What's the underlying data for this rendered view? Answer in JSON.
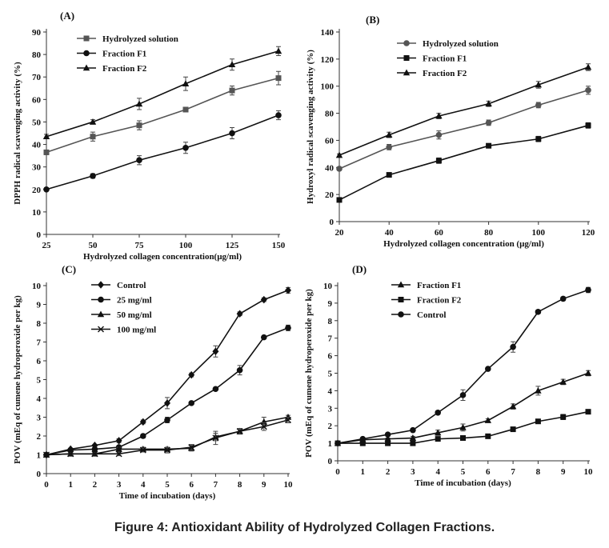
{
  "caption": "Figure 4: Antioxidant Ability of Hydrolyzed Collagen Fractions.",
  "chart_data": [
    {
      "panel": "(A)",
      "type": "line",
      "xlabel": "Hydrolyzed  collagen concentration(µg/ml)",
      "ylabel": "DPPH radical scavenging activity (%)",
      "xlim": [
        25,
        150
      ],
      "ylim": [
        0,
        90
      ],
      "xticks": [
        25,
        50,
        75,
        100,
        125,
        150
      ],
      "yticks": [
        0,
        10,
        20,
        30,
        40,
        50,
        60,
        70,
        80,
        90
      ],
      "legend_position": "top-left",
      "series": [
        {
          "name": "Hydrolyzed solution",
          "marker": "square",
          "color": "#555555",
          "x": [
            25,
            50,
            75,
            100,
            125,
            150
          ],
          "y": [
            36.5,
            43.5,
            48.5,
            55.5,
            64,
            69.5
          ],
          "err": [
            1,
            2,
            2,
            1,
            2,
            3
          ]
        },
        {
          "name": "Fraction F1",
          "marker": "circle",
          "color": "#111111",
          "x": [
            25,
            50,
            75,
            100,
            125,
            150
          ],
          "y": [
            20,
            26,
            33,
            38.5,
            45,
            53
          ],
          "err": [
            0.5,
            1,
            2,
            2.5,
            2.5,
            2
          ]
        },
        {
          "name": "Fraction F2",
          "marker": "triangle",
          "color": "#111111",
          "x": [
            25,
            50,
            75,
            100,
            125,
            150
          ],
          "y": [
            43.5,
            50,
            58,
            67,
            75.5,
            81.5
          ],
          "err": [
            1,
            1,
            2.5,
            3,
            2.5,
            2
          ]
        }
      ]
    },
    {
      "panel": "(B)",
      "type": "line",
      "xlabel": "Hydrolyzed  collagen concentration  (µg/ml)",
      "ylabel": "Hydroxyl radical scavenging activity (%)",
      "xlim": [
        20,
        120
      ],
      "ylim": [
        0,
        140
      ],
      "xticks": [
        20,
        40,
        60,
        80,
        100,
        120
      ],
      "yticks": [
        0,
        20,
        40,
        60,
        80,
        100,
        120,
        140
      ],
      "legend_position": "top-left",
      "series": [
        {
          "name": "Hydrolyzed solution",
          "marker": "circle",
          "color": "#555555",
          "x": [
            20,
            40,
            60,
            80,
            100,
            120
          ],
          "y": [
            39,
            55,
            64,
            73,
            86,
            97
          ],
          "err": [
            1,
            2,
            3,
            2,
            2,
            3
          ]
        },
        {
          "name": "Fraction F1",
          "marker": "square",
          "color": "#111111",
          "x": [
            20,
            40,
            60,
            80,
            100,
            120
          ],
          "y": [
            16,
            34.5,
            45,
            56,
            61,
            71
          ],
          "err": [
            1,
            1.5,
            2,
            1,
            2,
            2
          ]
        },
        {
          "name": "Fraction F2",
          "marker": "triangle",
          "color": "#111111",
          "x": [
            20,
            40,
            60,
            80,
            100,
            120
          ],
          "y": [
            49,
            64,
            78,
            87,
            101,
            114
          ],
          "err": [
            1,
            2,
            2,
            2,
            2.5,
            2.5
          ]
        }
      ]
    },
    {
      "panel": "(C)",
      "type": "line",
      "xlabel": "Time of incubation  (days)",
      "ylabel": "POV (mEq of cumene hydroperoxide per kg)",
      "xlim": [
        0,
        10
      ],
      "ylim": [
        0,
        10
      ],
      "xticks": [
        0,
        1,
        2,
        3,
        4,
        5,
        6,
        7,
        8,
        9,
        10
      ],
      "yticks": [
        0,
        1,
        2,
        3,
        4,
        5,
        6,
        7,
        8,
        9,
        10
      ],
      "legend_position": "top-left",
      "series": [
        {
          "name": "Control",
          "marker": "diamond",
          "color": "#111111",
          "x": [
            0,
            1,
            2,
            3,
            4,
            5,
            6,
            7,
            8,
            9,
            10
          ],
          "y": [
            1,
            1.3,
            1.5,
            1.75,
            2.75,
            3.75,
            5.25,
            6.5,
            8.5,
            9.25,
            9.75
          ],
          "err": [
            0,
            0.05,
            0.05,
            0.1,
            0.1,
            0.3,
            0.1,
            0.3,
            0.1,
            0.1,
            0.15
          ]
        },
        {
          "name": "25 mg/ml",
          "marker": "circle",
          "color": "#111111",
          "x": [
            0,
            1,
            2,
            3,
            4,
            5,
            6,
            7,
            8,
            9,
            10
          ],
          "y": [
            1,
            1.25,
            1.3,
            1.4,
            2,
            2.85,
            3.75,
            4.5,
            5.5,
            7.25,
            7.75
          ],
          "err": [
            0,
            0.05,
            0.05,
            0.05,
            0.1,
            0.15,
            0.05,
            0.05,
            0.25,
            0.05,
            0.15
          ]
        },
        {
          "name": "50 mg/ml",
          "marker": "triangle",
          "color": "#111111",
          "x": [
            0,
            1,
            2,
            3,
            4,
            5,
            6,
            7,
            8,
            9,
            10
          ],
          "y": [
            1,
            1.05,
            1.05,
            1.3,
            1.3,
            1.3,
            1.35,
            1.95,
            2.25,
            2.75,
            3
          ],
          "err": [
            0,
            0.05,
            0.05,
            0.1,
            0.1,
            0.1,
            0.15,
            0.2,
            0.15,
            0.25,
            0.1
          ]
        },
        {
          "name": "100 mg/ml",
          "marker": "cross",
          "color": "#111111",
          "x": [
            0,
            1,
            2,
            3,
            4,
            5,
            6,
            7,
            8,
            9,
            10
          ],
          "y": [
            1,
            1.05,
            1.05,
            1.05,
            1.25,
            1.25,
            1.4,
            1.9,
            2.25,
            2.5,
            2.85
          ],
          "err": [
            0,
            0.05,
            0.05,
            0.1,
            0.1,
            0.15,
            0.15,
            0.35,
            0.15,
            0.2,
            0.15
          ]
        }
      ]
    },
    {
      "panel": "(D)",
      "type": "line",
      "xlabel": "Time of incubation  (days)",
      "ylabel": "POV (mEq of cumene hydroperoxide per kg)",
      "xlim": [
        0,
        10
      ],
      "ylim": [
        0,
        10
      ],
      "xticks": [
        0,
        1,
        2,
        3,
        4,
        5,
        6,
        7,
        8,
        9,
        10
      ],
      "yticks": [
        0,
        1,
        2,
        3,
        4,
        5,
        6,
        7,
        8,
        9,
        10
      ],
      "legend_position": "top-left",
      "series": [
        {
          "name": "Fraction F1",
          "marker": "triangle",
          "color": "#111111",
          "x": [
            0,
            1,
            2,
            3,
            4,
            5,
            6,
            7,
            8,
            9,
            10
          ],
          "y": [
            1,
            1.2,
            1.25,
            1.3,
            1.6,
            1.9,
            2.3,
            3.1,
            4,
            4.5,
            5
          ],
          "err": [
            0,
            0.05,
            0.05,
            0.1,
            0.15,
            0.2,
            0.1,
            0.15,
            0.25,
            0.15,
            0.15
          ]
        },
        {
          "name": "Fraction F2",
          "marker": "square",
          "color": "#111111",
          "x": [
            0,
            1,
            2,
            3,
            4,
            5,
            6,
            7,
            8,
            9,
            10
          ],
          "y": [
            1,
            1,
            1,
            1,
            1.25,
            1.3,
            1.4,
            1.8,
            2.25,
            2.5,
            2.8
          ],
          "err": [
            0,
            0.05,
            0.05,
            0.05,
            0.05,
            0.05,
            0.05,
            0.05,
            0.1,
            0.15,
            0.05
          ]
        },
        {
          "name": "Control",
          "marker": "circle",
          "color": "#111111",
          "x": [
            0,
            1,
            2,
            3,
            4,
            5,
            6,
            7,
            8,
            9,
            10
          ],
          "y": [
            1,
            1.25,
            1.5,
            1.75,
            2.75,
            3.75,
            5.25,
            6.5,
            8.5,
            9.25,
            9.75
          ],
          "err": [
            0,
            0.05,
            0.05,
            0.1,
            0.1,
            0.3,
            0.05,
            0.3,
            0.1,
            0.1,
            0.15
          ]
        }
      ]
    }
  ]
}
